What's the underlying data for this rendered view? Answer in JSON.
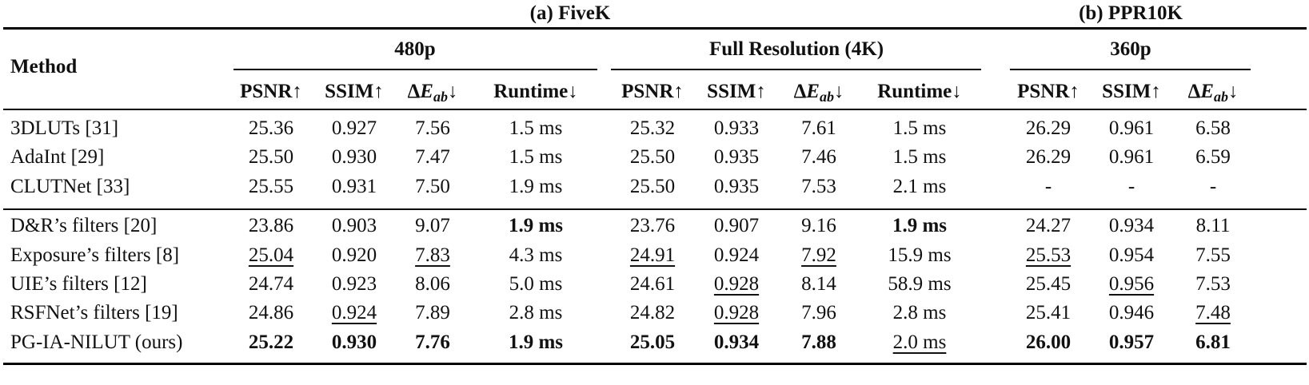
{
  "groups": {
    "fivek": "(a) FiveK",
    "ppr10k": "(b) PPR10K"
  },
  "subgroups": [
    "480p",
    "Full Resolution (4K)",
    "360p"
  ],
  "header": {
    "method": "Method",
    "psnr": "PSNR↑",
    "ssim": "SSIM↑",
    "delta": "Δ",
    "e": "E",
    "ab": "ab",
    "down": "↓",
    "runtime": "Runtime↓"
  },
  "rows": [
    {
      "method": "3DLUTs [31]",
      "cells": [
        "25.36",
        "0.927",
        "7.56",
        "1.5 ms",
        "25.32",
        "0.933",
        "7.61",
        "1.5 ms",
        "26.29",
        "0.961",
        "6.58"
      ]
    },
    {
      "method": "AdaInt [29]",
      "cells": [
        "25.50",
        "0.930",
        "7.47",
        "1.5 ms",
        "25.50",
        "0.935",
        "7.46",
        "1.5 ms",
        "26.29",
        "0.961",
        "6.59"
      ]
    },
    {
      "method": "CLUTNet [33]",
      "cells": [
        "25.55",
        "0.931",
        "7.50",
        "1.9 ms",
        "25.50",
        "0.935",
        "7.53",
        "2.1 ms",
        "-",
        "-",
        "-"
      ]
    },
    {
      "method": "D&R’s filters [20]",
      "cells": [
        "23.86",
        "0.903",
        "9.07",
        "1.9 ms",
        "23.76",
        "0.907",
        "9.16",
        "1.9 ms",
        "24.27",
        "0.934",
        "8.11"
      ],
      "bold": [
        3,
        7
      ]
    },
    {
      "method": "Exposure’s filters [8]",
      "cells": [
        "25.04",
        "0.920",
        "7.83",
        "4.3 ms",
        "24.91",
        "0.924",
        "7.92",
        "15.9 ms",
        "25.53",
        "0.954",
        "7.55"
      ],
      "under": [
        0,
        2,
        4,
        6,
        8
      ]
    },
    {
      "method": "UIE’s filters [12]",
      "cells": [
        "24.74",
        "0.923",
        "8.06",
        "5.0 ms",
        "24.61",
        "0.928",
        "8.14",
        "58.9 ms",
        "25.45",
        "0.956",
        "7.53"
      ],
      "under": [
        5,
        9
      ]
    },
    {
      "method": "RSFNet’s filters [19]",
      "cells": [
        "24.86",
        "0.924",
        "7.89",
        "2.8 ms",
        "24.82",
        "0.928",
        "7.96",
        "2.8 ms",
        "25.41",
        "0.946",
        "7.48"
      ],
      "under": [
        1,
        5,
        10
      ]
    },
    {
      "method": "PG-IA-NILUT (ours)",
      "cells": [
        "25.22",
        "0.930",
        "7.76",
        "1.9 ms",
        "25.05",
        "0.934",
        "7.88",
        "2.0 ms",
        "26.00",
        "0.957",
        "6.81"
      ],
      "bold": [
        0,
        1,
        2,
        3,
        4,
        5,
        6,
        8,
        9,
        10
      ],
      "under": [
        7
      ]
    }
  ]
}
